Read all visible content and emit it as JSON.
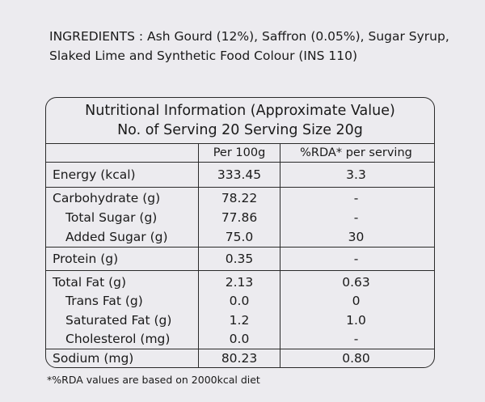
{
  "ingredients": {
    "line1": "INGREDIENTS :  Ash Gourd (12%), Saffron (0.05%), Sugar Syrup,",
    "line2": "Slaked Lime and Synthetic Food Colour (INS 110)"
  },
  "panel": {
    "title_line1": "Nutritional Information (Approximate Value)",
    "title_line2": "No. of Serving 20  Serving Size 20g",
    "header": {
      "per100": "Per 100g",
      "rda": "%RDA* per serving"
    },
    "rows": [
      {
        "name": "Energy (kcal)",
        "per100": "333.45",
        "rda": "3.3"
      },
      {
        "name": "Carbohydrate (g)",
        "per100": "78.22",
        "rda": "-"
      },
      {
        "name": "Total Sugar (g)",
        "per100": "77.86",
        "rda": "-"
      },
      {
        "name": "Added Sugar (g)",
        "per100": "75.0",
        "rda": "30"
      },
      {
        "name": "Protein (g)",
        "per100": "0.35",
        "rda": "-"
      },
      {
        "name": "Total Fat (g)",
        "per100": "2.13",
        "rda": "0.63"
      },
      {
        "name": "Trans Fat (g)",
        "per100": "0.0",
        "rda": "0"
      },
      {
        "name": "Saturated Fat (g)",
        "per100": "1.2",
        "rda": "1.0"
      },
      {
        "name": "Cholesterol (mg)",
        "per100": "0.0",
        "rda": "-"
      },
      {
        "name": "Sodium (mg)",
        "per100": "80.23",
        "rda": "0.80"
      }
    ]
  },
  "footnote": "*%RDA values are based on 2000kcal diet"
}
